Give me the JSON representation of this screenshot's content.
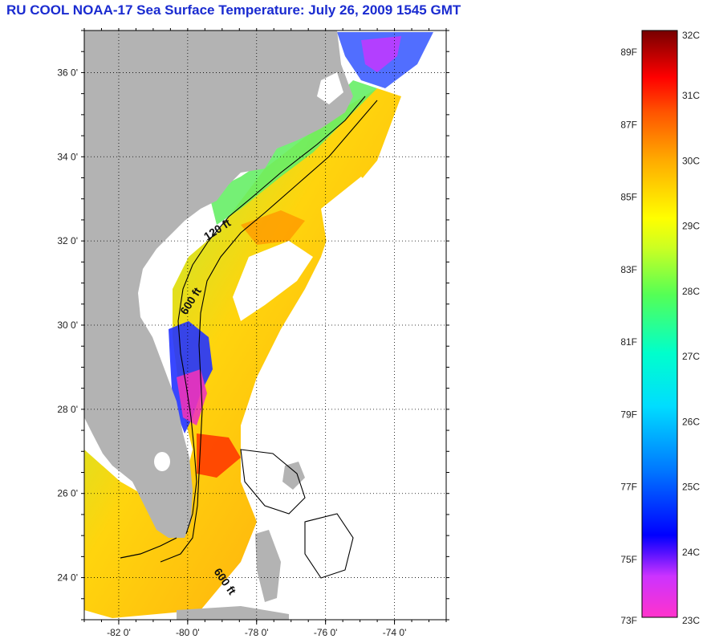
{
  "title": "RU COOL  NOAA-17  Sea Surface Temperature:  July 26, 2009 1545 GMT",
  "map": {
    "lon_range": [
      -83,
      -72.5
    ],
    "lat_range": [
      23,
      37
    ],
    "lon_ticks": [
      {
        "value": -82,
        "label": "-82 0'"
      },
      {
        "value": -80,
        "label": "-80 0'"
      },
      {
        "value": -78,
        "label": "-78 0'"
      },
      {
        "value": -76,
        "label": "-76 0'"
      },
      {
        "value": -74,
        "label": "-74 0'"
      }
    ],
    "lat_ticks": [
      {
        "value": 24,
        "label": "24 0'"
      },
      {
        "value": 26,
        "label": "26 0'"
      },
      {
        "value": 28,
        "label": "28 0'"
      },
      {
        "value": 30,
        "label": "30 0'"
      },
      {
        "value": 32,
        "label": "32 0'"
      },
      {
        "value": 34,
        "label": "34 0'"
      },
      {
        "value": 36,
        "label": "36 0'"
      }
    ],
    "grid": "dotted",
    "land_color": "#b3b3b3",
    "cloud_color": "#ffffff",
    "contour_labels": [
      "120 ft",
      "600 ft",
      "600 ft"
    ]
  },
  "colorbar": {
    "celsius_range": [
      23,
      32
    ],
    "fahrenheit_labels": [
      "89F",
      "87F",
      "85F",
      "83F",
      "81F",
      "79F",
      "77F",
      "75F",
      "73F"
    ],
    "celsius_labels": [
      "32C",
      "31C",
      "30C",
      "29C",
      "28C",
      "27C",
      "26C",
      "25C",
      "24C",
      "23C"
    ],
    "colors": [
      "#ff33cc",
      "#8833ff",
      "#0000ff",
      "#00aaff",
      "#00ffee",
      "#33ff77",
      "#aaff22",
      "#ffff00",
      "#ffaa00",
      "#ff5500",
      "#ff0000",
      "#7a0000"
    ]
  }
}
